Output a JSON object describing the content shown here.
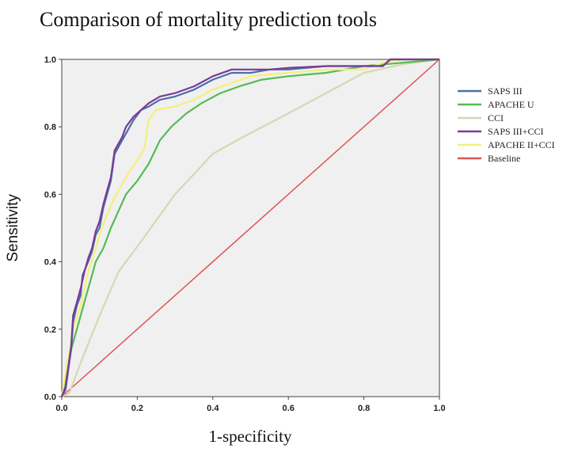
{
  "chart_data": {
    "type": "line",
    "title": "Comparison of mortality prediction tools",
    "xlabel": "1-specificity",
    "ylabel": "Sensitivity",
    "xlim": [
      0,
      1
    ],
    "ylim": [
      0,
      1
    ],
    "xticks": [
      "0.0",
      "0.2",
      "0.4",
      "0.6",
      "0.8",
      "1.0"
    ],
    "yticks": [
      "0.0",
      "0.2",
      "0.4",
      "0.6",
      "0.8",
      "1.0"
    ],
    "plot_background": "#f0f0f0",
    "grid": false,
    "legend_position": "right",
    "series": [
      {
        "name": "SAPS III",
        "color": "#4a6fa5",
        "points": [
          [
            0,
            0
          ],
          [
            0.01,
            0.02
          ],
          [
            0.02,
            0.1
          ],
          [
            0.025,
            0.14
          ],
          [
            0.03,
            0.22
          ],
          [
            0.04,
            0.27
          ],
          [
            0.05,
            0.3
          ],
          [
            0.055,
            0.36
          ],
          [
            0.07,
            0.4
          ],
          [
            0.08,
            0.43
          ],
          [
            0.09,
            0.48
          ],
          [
            0.1,
            0.5
          ],
          [
            0.11,
            0.56
          ],
          [
            0.12,
            0.6
          ],
          [
            0.13,
            0.64
          ],
          [
            0.14,
            0.72
          ],
          [
            0.15,
            0.74
          ],
          [
            0.16,
            0.76
          ],
          [
            0.17,
            0.78
          ],
          [
            0.19,
            0.82
          ],
          [
            0.21,
            0.85
          ],
          [
            0.23,
            0.86
          ],
          [
            0.26,
            0.88
          ],
          [
            0.3,
            0.89
          ],
          [
            0.35,
            0.91
          ],
          [
            0.4,
            0.94
          ],
          [
            0.45,
            0.96
          ],
          [
            0.5,
            0.96
          ],
          [
            0.55,
            0.97
          ],
          [
            0.6,
            0.97
          ],
          [
            0.7,
            0.98
          ],
          [
            0.85,
            0.98
          ],
          [
            0.87,
            1
          ],
          [
            1,
            1
          ]
        ]
      },
      {
        "name": "APACHE U",
        "color": "#55bb55",
        "points": [
          [
            0,
            0
          ],
          [
            0.01,
            0.06
          ],
          [
            0.02,
            0.12
          ],
          [
            0.04,
            0.2
          ],
          [
            0.06,
            0.28
          ],
          [
            0.08,
            0.36
          ],
          [
            0.09,
            0.4
          ],
          [
            0.11,
            0.44
          ],
          [
            0.13,
            0.5
          ],
          [
            0.15,
            0.55
          ],
          [
            0.17,
            0.6
          ],
          [
            0.2,
            0.64
          ],
          [
            0.23,
            0.69
          ],
          [
            0.26,
            0.76
          ],
          [
            0.29,
            0.8
          ],
          [
            0.33,
            0.84
          ],
          [
            0.37,
            0.87
          ],
          [
            0.42,
            0.9
          ],
          [
            0.47,
            0.92
          ],
          [
            0.53,
            0.94
          ],
          [
            0.6,
            0.95
          ],
          [
            0.7,
            0.96
          ],
          [
            0.8,
            0.98
          ],
          [
            0.9,
            0.99
          ],
          [
            1,
            1
          ]
        ]
      },
      {
        "name": "CCI",
        "color": "#d8d6b4",
        "points": [
          [
            0,
            0
          ],
          [
            0.02,
            0.01
          ],
          [
            0.05,
            0.1
          ],
          [
            0.1,
            0.24
          ],
          [
            0.15,
            0.37
          ],
          [
            0.21,
            0.46
          ],
          [
            0.3,
            0.6
          ],
          [
            0.4,
            0.72
          ],
          [
            0.48,
            0.77
          ],
          [
            0.6,
            0.84
          ],
          [
            0.7,
            0.9
          ],
          [
            0.8,
            0.96
          ],
          [
            0.9,
            0.985
          ],
          [
            1,
            1
          ]
        ]
      },
      {
        "name": "SAPS III+CCI",
        "color": "#7a3a9a",
        "points": [
          [
            0,
            0
          ],
          [
            0.01,
            0.03
          ],
          [
            0.02,
            0.11
          ],
          [
            0.025,
            0.15
          ],
          [
            0.03,
            0.24
          ],
          [
            0.04,
            0.28
          ],
          [
            0.05,
            0.32
          ],
          [
            0.06,
            0.37
          ],
          [
            0.07,
            0.41
          ],
          [
            0.08,
            0.44
          ],
          [
            0.09,
            0.49
          ],
          [
            0.1,
            0.52
          ],
          [
            0.11,
            0.57
          ],
          [
            0.12,
            0.61
          ],
          [
            0.13,
            0.65
          ],
          [
            0.14,
            0.73
          ],
          [
            0.15,
            0.75
          ],
          [
            0.16,
            0.77
          ],
          [
            0.17,
            0.8
          ],
          [
            0.19,
            0.83
          ],
          [
            0.21,
            0.85
          ],
          [
            0.23,
            0.87
          ],
          [
            0.26,
            0.89
          ],
          [
            0.3,
            0.9
          ],
          [
            0.35,
            0.92
          ],
          [
            0.4,
            0.95
          ],
          [
            0.45,
            0.97
          ],
          [
            0.5,
            0.97
          ],
          [
            0.55,
            0.97
          ],
          [
            0.6,
            0.975
          ],
          [
            0.7,
            0.98
          ],
          [
            0.85,
            0.98
          ],
          [
            0.87,
            1
          ],
          [
            1,
            1
          ]
        ]
      },
      {
        "name": "APACHE II+CCI",
        "color": "#f2f07a",
        "points": [
          [
            0,
            0
          ],
          [
            0.01,
            0.07
          ],
          [
            0.02,
            0.13
          ],
          [
            0.03,
            0.2
          ],
          [
            0.05,
            0.27
          ],
          [
            0.06,
            0.32
          ],
          [
            0.07,
            0.37
          ],
          [
            0.09,
            0.44
          ],
          [
            0.1,
            0.48
          ],
          [
            0.12,
            0.54
          ],
          [
            0.14,
            0.59
          ],
          [
            0.16,
            0.63
          ],
          [
            0.18,
            0.67
          ],
          [
            0.2,
            0.7
          ],
          [
            0.22,
            0.74
          ],
          [
            0.23,
            0.82
          ],
          [
            0.25,
            0.85
          ],
          [
            0.3,
            0.86
          ],
          [
            0.35,
            0.88
          ],
          [
            0.4,
            0.91
          ],
          [
            0.45,
            0.93
          ],
          [
            0.5,
            0.95
          ],
          [
            0.6,
            0.96
          ],
          [
            0.7,
            0.97
          ],
          [
            0.8,
            0.97
          ],
          [
            0.85,
            0.99
          ],
          [
            0.9,
            1
          ],
          [
            1,
            1
          ]
        ]
      },
      {
        "name": "Baseline",
        "color": "#dd5555",
        "points": [
          [
            0,
            0
          ],
          [
            1,
            1
          ]
        ]
      }
    ]
  }
}
